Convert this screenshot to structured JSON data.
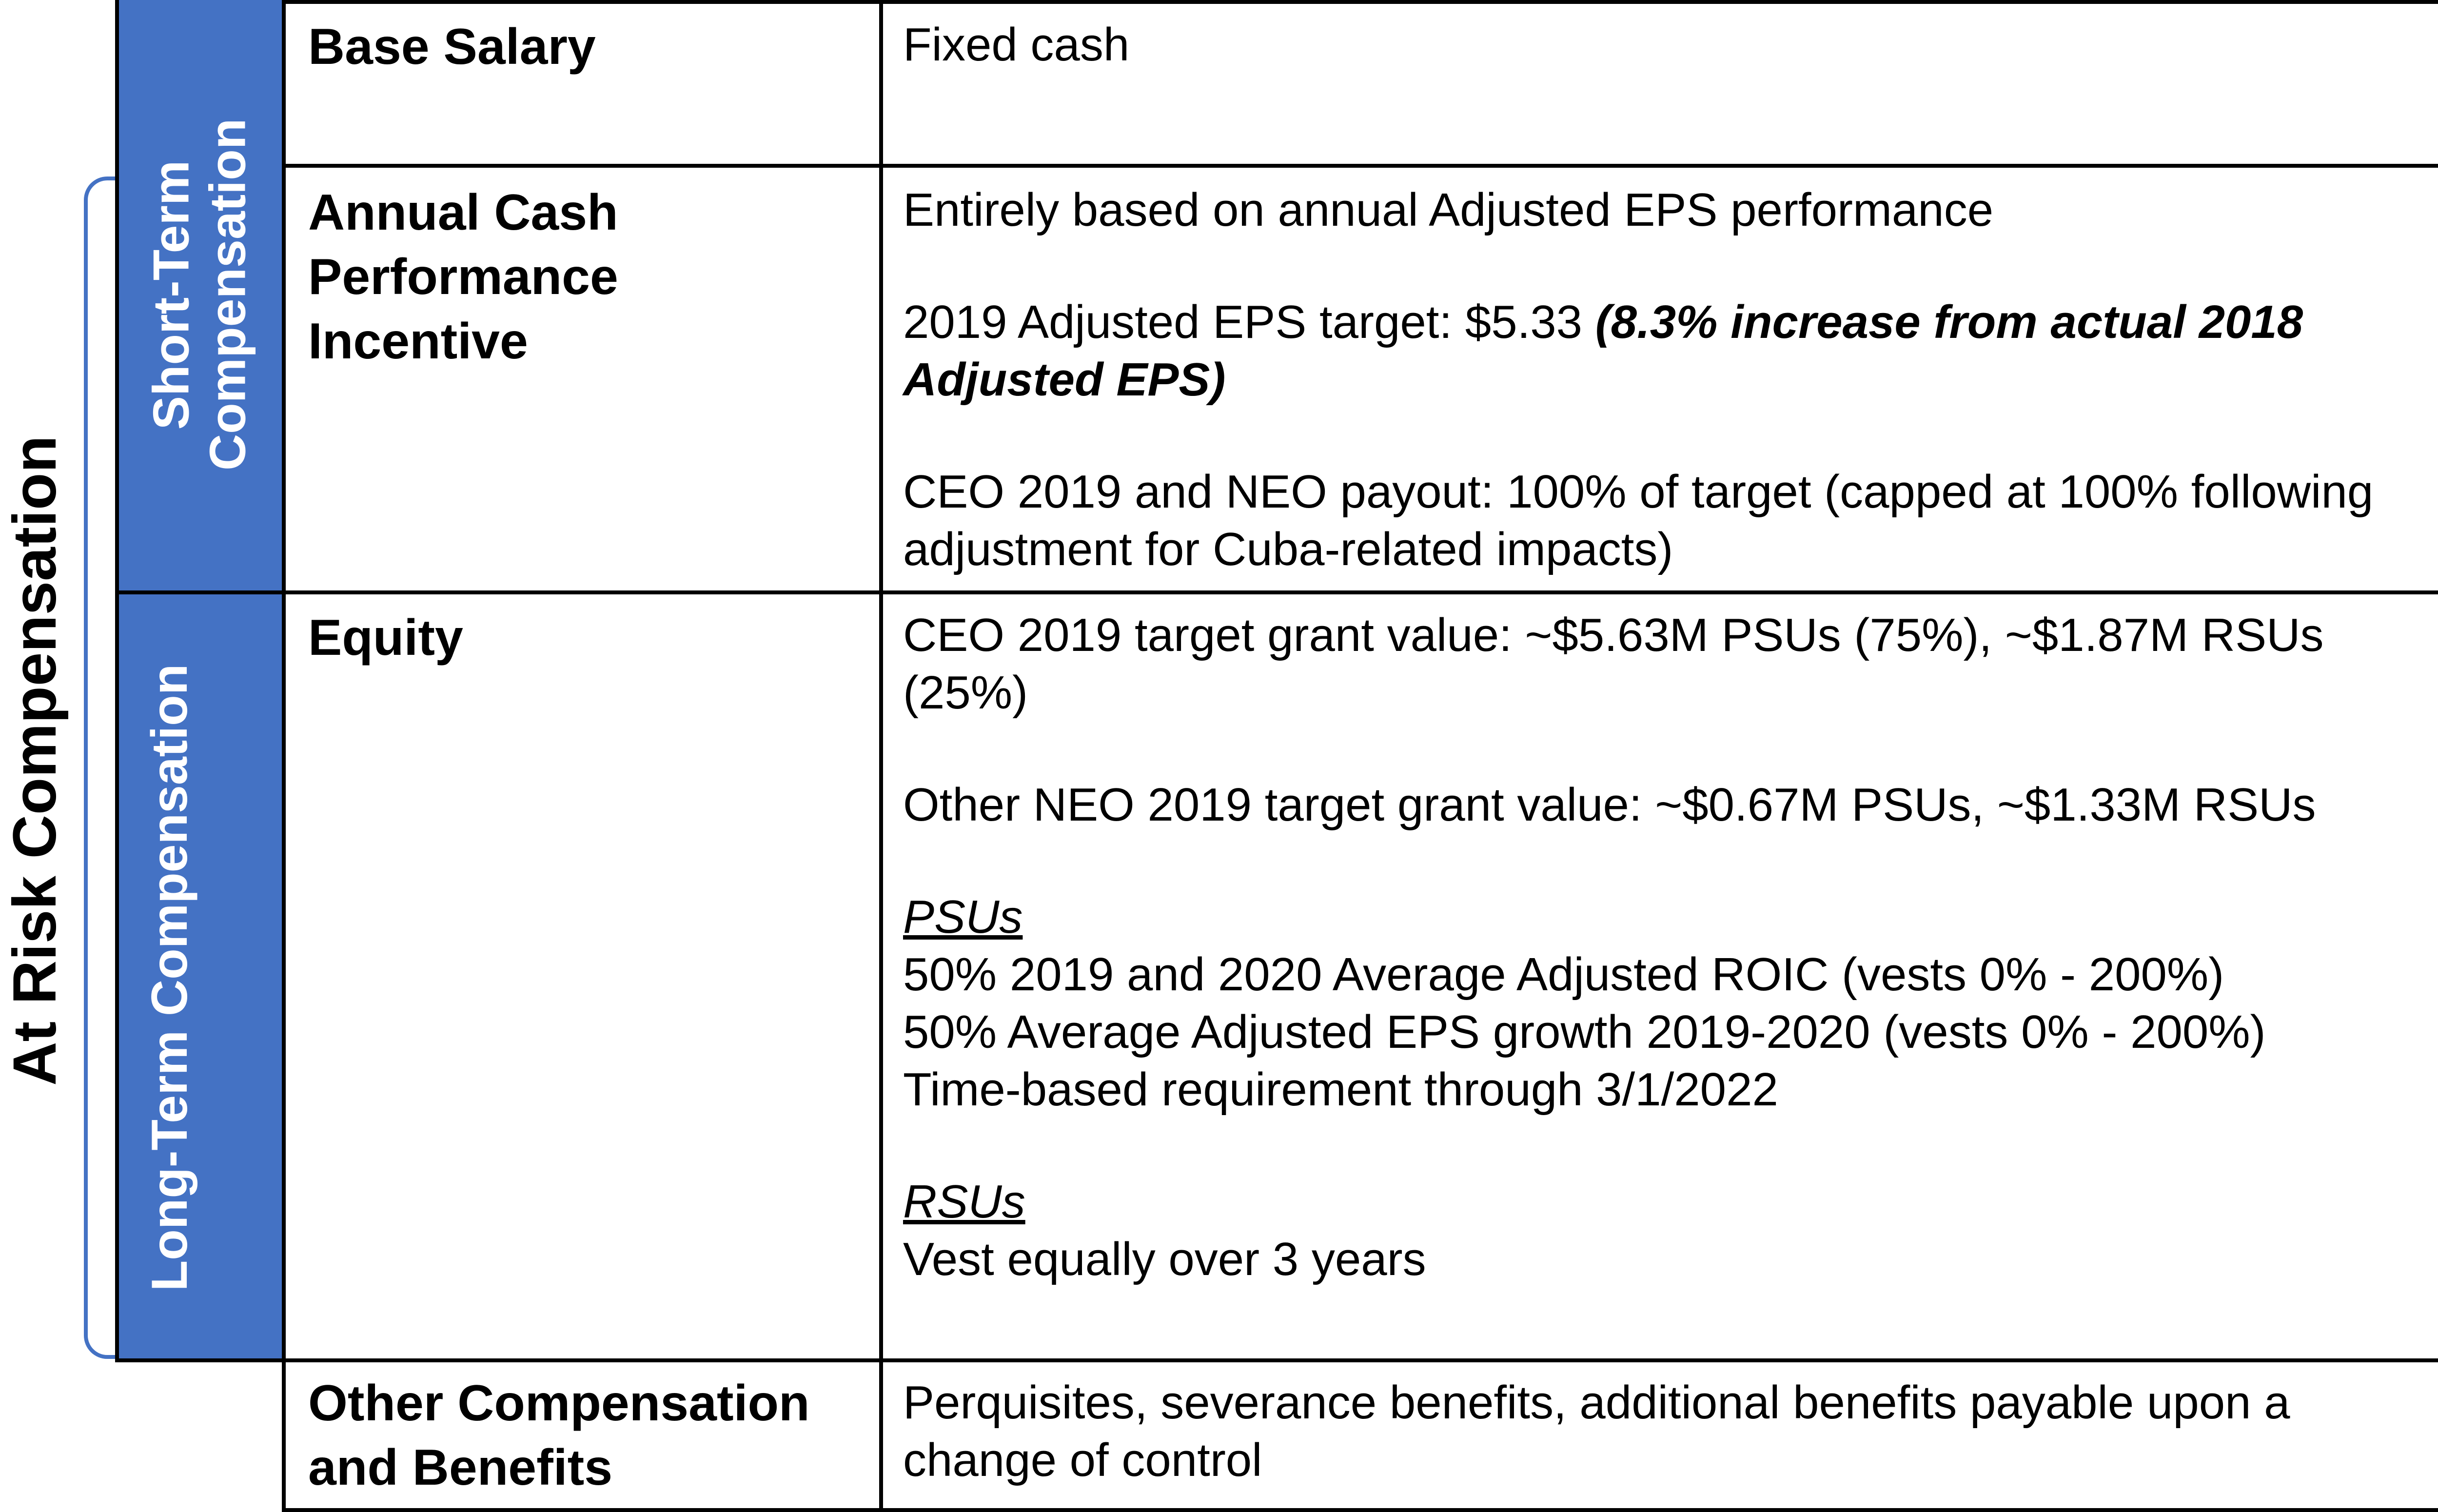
{
  "outer_label": "At Risk Compensation",
  "bands": {
    "short_term": "Short-Term Compensation",
    "long_term": "Long-Term Compensation"
  },
  "rows": {
    "base_salary": {
      "category": "Base Salary",
      "description": "Fixed cash"
    },
    "annual_cash": {
      "category": "Annual Cash Performance Incentive",
      "line1": "Entirely based on annual Adjusted EPS performance",
      "line2_prefix": "2019 Adjusted EPS target: $5.33 ",
      "line2_emphasis": "(8.3% increase from actual 2018 Adjusted EPS)",
      "line3": "CEO 2019 and NEO payout: 100% of target (capped at 100% following adjustment for Cuba-related impacts)"
    },
    "equity": {
      "category": "Equity",
      "line1": "CEO 2019 target grant value: ~$5.63M PSUs (75%), ~$1.87M RSUs (25%)",
      "line2": "Other NEO 2019 target grant value: ~$0.67M PSUs, ~$1.33M RSUs",
      "psus_heading": "PSUs",
      "psus_items": [
        "50% 2019 and 2020 Average Adjusted ROIC (vests 0% - 200%)",
        "50% Average Adjusted EPS growth 2019-2020 (vests 0% - 200%)",
        "Time-based requirement through 3/1/2022"
      ],
      "rsus_heading": "RSUs",
      "rsus_items": [
        "Vest equally over 3 years"
      ]
    },
    "other": {
      "category": "Other Compensation and Benefits",
      "description": "Perquisites, severance benefits, additional benefits payable upon a change of control"
    }
  },
  "colors": {
    "band": "#4472C4",
    "band_text": "#FFFFFF",
    "grid": "#000000"
  }
}
